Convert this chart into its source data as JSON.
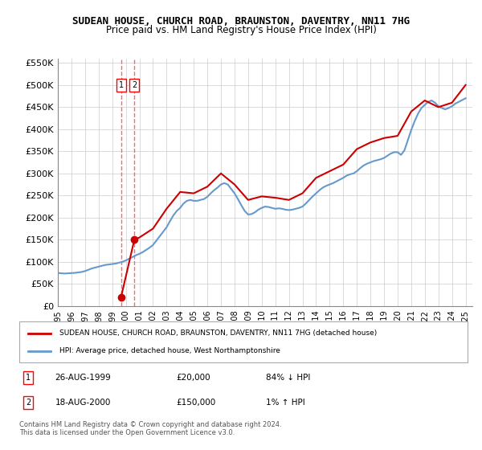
{
  "title": "SUDEAN HOUSE, CHURCH ROAD, BRAUNSTON, DAVENTRY, NN11 7HG",
  "subtitle": "Price paid vs. HM Land Registry's House Price Index (HPI)",
  "ylim": [
    0,
    560000
  ],
  "yticks": [
    0,
    50000,
    100000,
    150000,
    200000,
    250000,
    300000,
    350000,
    400000,
    450000,
    500000,
    550000
  ],
  "ytick_labels": [
    "£0",
    "£50K",
    "£100K",
    "£150K",
    "£200K",
    "£250K",
    "£300K",
    "£350K",
    "£400K",
    "£450K",
    "£500K",
    "£550K"
  ],
  "xlim_start": 1995.0,
  "xlim_end": 2025.5,
  "transactions": [
    {
      "id": 1,
      "date": "26-AUG-1999",
      "x": 1999.65,
      "price": 20000,
      "label": "£20,000",
      "hpi_rel": "84% ↓ HPI"
    },
    {
      "id": 2,
      "date": "18-AUG-2000",
      "x": 2000.63,
      "price": 150000,
      "label": "£150,000",
      "hpi_rel": "1% ↑ HPI"
    }
  ],
  "hpi_line_color": "#6699cc",
  "property_line_color": "#cc0000",
  "transaction_dot_color": "#cc0000",
  "vline_color": "#ff6666",
  "grid_color": "#cccccc",
  "legend_property_label": "SUDEAN HOUSE, CHURCH ROAD, BRAUNSTON, DAVENTRY, NN11 7HG (detached house)",
  "legend_hpi_label": "HPI: Average price, detached house, West Northamptonshire",
  "footer": "Contains HM Land Registry data © Crown copyright and database right 2024.\nThis data is licensed under the Open Government Licence v3.0.",
  "hpi_data_x": [
    1995.0,
    1995.25,
    1995.5,
    1995.75,
    1996.0,
    1996.25,
    1996.5,
    1996.75,
    1997.0,
    1997.25,
    1997.5,
    1997.75,
    1998.0,
    1998.25,
    1998.5,
    1998.75,
    1999.0,
    1999.25,
    1999.5,
    1999.75,
    2000.0,
    2000.25,
    2000.5,
    2000.75,
    2001.0,
    2001.25,
    2001.5,
    2001.75,
    2002.0,
    2002.25,
    2002.5,
    2002.75,
    2003.0,
    2003.25,
    2003.5,
    2003.75,
    2004.0,
    2004.25,
    2004.5,
    2004.75,
    2005.0,
    2005.25,
    2005.5,
    2005.75,
    2006.0,
    2006.25,
    2006.5,
    2006.75,
    2007.0,
    2007.25,
    2007.5,
    2007.75,
    2008.0,
    2008.25,
    2008.5,
    2008.75,
    2009.0,
    2009.25,
    2009.5,
    2009.75,
    2010.0,
    2010.25,
    2010.5,
    2010.75,
    2011.0,
    2011.25,
    2011.5,
    2011.75,
    2012.0,
    2012.25,
    2012.5,
    2012.75,
    2013.0,
    2013.25,
    2013.5,
    2013.75,
    2014.0,
    2014.25,
    2014.5,
    2014.75,
    2015.0,
    2015.25,
    2015.5,
    2015.75,
    2016.0,
    2016.25,
    2016.5,
    2016.75,
    2017.0,
    2017.25,
    2017.5,
    2017.75,
    2018.0,
    2018.25,
    2018.5,
    2018.75,
    2019.0,
    2019.25,
    2019.5,
    2019.75,
    2020.0,
    2020.25,
    2020.5,
    2020.75,
    2021.0,
    2021.25,
    2021.5,
    2021.75,
    2022.0,
    2022.25,
    2022.5,
    2022.75,
    2023.0,
    2023.25,
    2023.5,
    2023.75,
    2024.0,
    2024.25,
    2024.5,
    2024.75,
    2025.0
  ],
  "hpi_data_y": [
    75000,
    74000,
    73500,
    74000,
    74500,
    75000,
    76000,
    77000,
    79000,
    82000,
    85000,
    87000,
    89000,
    91000,
    93000,
    94000,
    95000,
    96000,
    98000,
    100000,
    103000,
    107000,
    111000,
    115000,
    118000,
    122000,
    127000,
    132000,
    138000,
    148000,
    158000,
    168000,
    178000,
    192000,
    205000,
    215000,
    222000,
    232000,
    238000,
    240000,
    238000,
    238000,
    240000,
    242000,
    247000,
    255000,
    262000,
    268000,
    275000,
    278000,
    275000,
    265000,
    255000,
    242000,
    228000,
    215000,
    207000,
    208000,
    212000,
    218000,
    222000,
    225000,
    224000,
    222000,
    220000,
    221000,
    220000,
    218000,
    217000,
    218000,
    220000,
    222000,
    225000,
    232000,
    240000,
    248000,
    255000,
    262000,
    268000,
    272000,
    275000,
    278000,
    282000,
    286000,
    290000,
    295000,
    298000,
    300000,
    305000,
    312000,
    318000,
    322000,
    325000,
    328000,
    330000,
    332000,
    335000,
    340000,
    345000,
    348000,
    348000,
    342000,
    352000,
    375000,
    398000,
    418000,
    435000,
    448000,
    455000,
    462000,
    465000,
    460000,
    452000,
    448000,
    445000,
    448000,
    452000,
    458000,
    462000,
    466000,
    470000
  ],
  "property_data_x": [
    1999.65,
    2000.63,
    2001.0,
    2002.0,
    2003.0,
    2004.0,
    2005.0,
    2006.0,
    2007.0,
    2008.0,
    2009.0,
    2010.0,
    2011.0,
    2012.0,
    2013.0,
    2014.0,
    2015.0,
    2016.0,
    2017.0,
    2018.0,
    2019.0,
    2020.0,
    2021.0,
    2022.0,
    2023.0,
    2024.0,
    2025.0
  ],
  "property_data_y": [
    20000,
    150000,
    155000,
    175000,
    220000,
    258000,
    255000,
    270000,
    300000,
    275000,
    240000,
    248000,
    245000,
    240000,
    255000,
    290000,
    305000,
    320000,
    355000,
    370000,
    380000,
    385000,
    440000,
    465000,
    450000,
    460000,
    500000
  ]
}
